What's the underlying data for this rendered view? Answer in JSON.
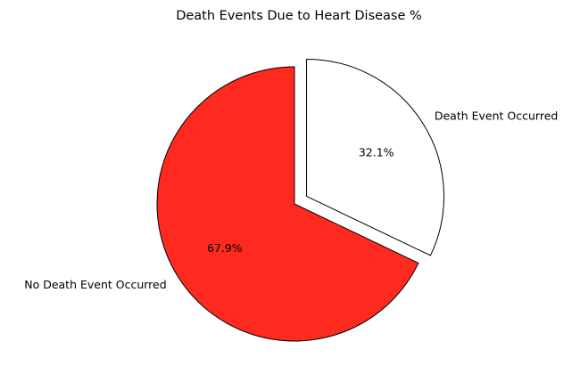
{
  "chart_data": {
    "type": "pie",
    "title": "Death Events Due to Heart Disease %",
    "slices": [
      {
        "label": "No Death Event Occurred",
        "value": 67.9,
        "pct_text": "67.9%",
        "color": "#ff2a1f",
        "exploded": false
      },
      {
        "label": "Death Event Occurred",
        "value": 32.1,
        "pct_text": "32.1%",
        "color": "#ffffff",
        "exploded": true
      }
    ],
    "start_angle_deg": 90,
    "direction": "counterclockwise",
    "edge_color": "#000000",
    "legend": "none"
  }
}
